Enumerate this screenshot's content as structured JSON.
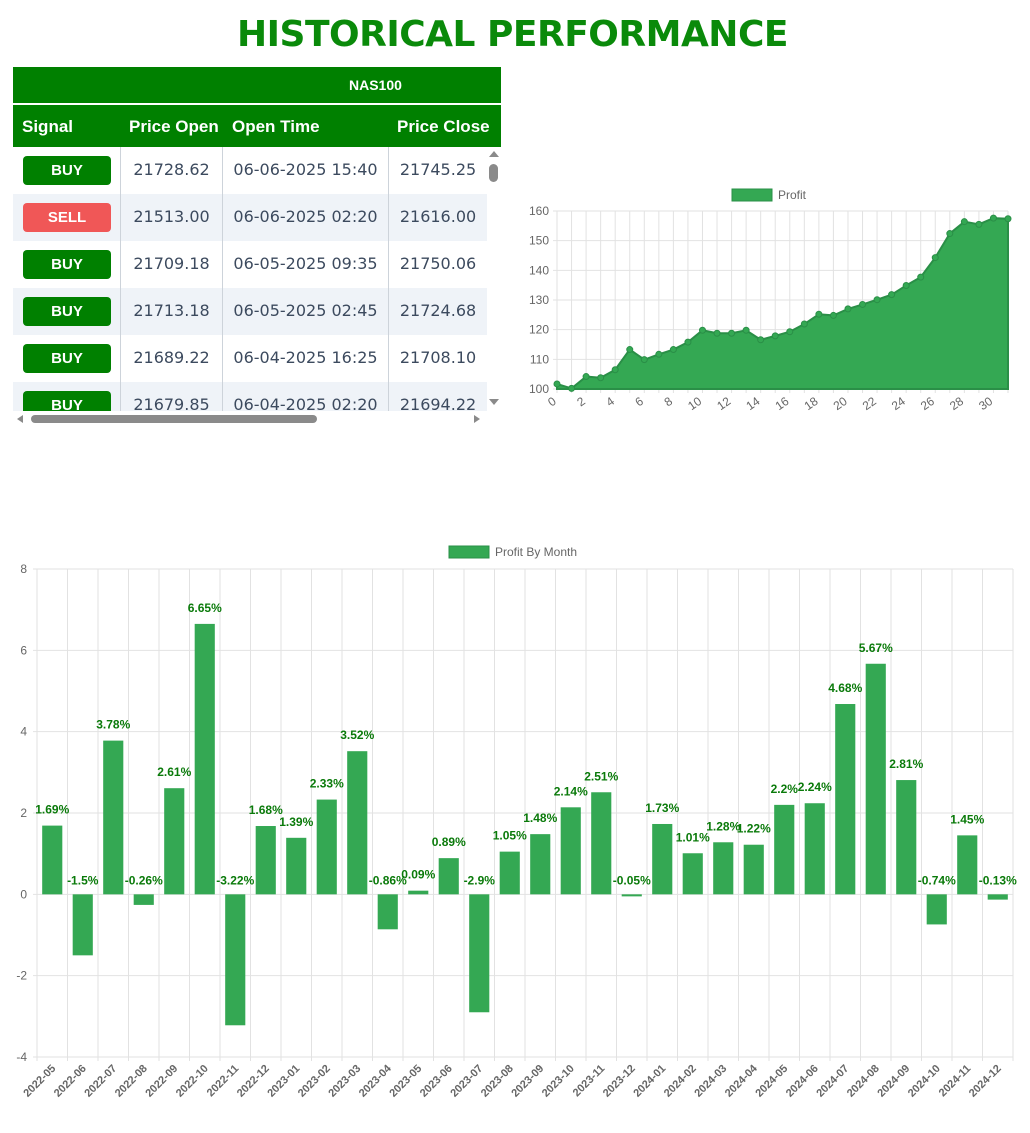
{
  "page": {
    "title": "HISTORICAL PERFORMANCE"
  },
  "table": {
    "symbol": "NAS100",
    "columns": [
      "Signal",
      "Price Open",
      "Open Time",
      "Price Close"
    ],
    "rows": [
      {
        "signal": "BUY",
        "price_open": "21728.62",
        "open_time": "06-06-2025 15:40",
        "price_close": "21745.25"
      },
      {
        "signal": "SELL",
        "price_open": "21513.00",
        "open_time": "06-06-2025 02:20",
        "price_close": "21616.00"
      },
      {
        "signal": "BUY",
        "price_open": "21709.18",
        "open_time": "06-05-2025 09:35",
        "price_close": "21750.06"
      },
      {
        "signal": "BUY",
        "price_open": "21713.18",
        "open_time": "06-05-2025 02:45",
        "price_close": "21724.68"
      },
      {
        "signal": "BUY",
        "price_open": "21689.22",
        "open_time": "06-04-2025 16:25",
        "price_close": "21708.10"
      },
      {
        "signal": "BUY",
        "price_open": "21679.85",
        "open_time": "06-04-2025 02:20",
        "price_close": "21694.22"
      }
    ]
  },
  "colors": {
    "brand_green": "#008000",
    "title_green": "#0a8a0a",
    "chart_green": "#34a853",
    "sell_red": "#f05757",
    "label_green": "#0a7a0a"
  },
  "chart_data": [
    {
      "type": "area",
      "legend": [
        "Profit"
      ],
      "legend_position": "top-center",
      "grid": true,
      "series": [
        {
          "name": "Profit",
          "x": [
            0,
            1,
            2,
            3,
            4,
            5,
            6,
            7,
            8,
            9,
            10,
            11,
            12,
            13,
            14,
            15,
            16,
            17,
            18,
            19,
            20,
            21,
            22,
            23,
            24,
            25,
            26,
            27,
            28,
            29,
            30,
            31
          ],
          "values": [
            101.7,
            100.2,
            104.2,
            103.8,
            106.5,
            113.3,
            109.9,
            111.7,
            113.3,
            115.8,
            119.8,
            118.8,
            118.8,
            119.8,
            116.6,
            117.9,
            119.3,
            121.9,
            125.2,
            124.8,
            127.0,
            128.5,
            130.1,
            131.8,
            134.9,
            137.7,
            144.3,
            152.4,
            156.4,
            155.5,
            157.6,
            157.4
          ]
        }
      ],
      "xticks": [
        0,
        2,
        4,
        6,
        8,
        10,
        12,
        14,
        16,
        18,
        20,
        22,
        24,
        26,
        28,
        30
      ],
      "yticks": [
        100,
        110,
        120,
        130,
        140,
        150,
        160
      ],
      "xlim": [
        0,
        31
      ],
      "ylim": [
        100,
        160
      ]
    },
    {
      "type": "bar",
      "legend": [
        "Profit By Month"
      ],
      "legend_position": "top-center",
      "grid": true,
      "categories": [
        "2022-05",
        "2022-06",
        "2022-07",
        "2022-08",
        "2022-09",
        "2022-10",
        "2022-11",
        "2022-12",
        "2023-01",
        "2023-02",
        "2023-03",
        "2023-04",
        "2023-05",
        "2023-06",
        "2023-07",
        "2023-08",
        "2023-09",
        "2023-10",
        "2023-11",
        "2023-12",
        "2024-01",
        "2024-02",
        "2024-03",
        "2024-04",
        "2024-05",
        "2024-06",
        "2024-07",
        "2024-08",
        "2024-09",
        "2024-10",
        "2024-11",
        "2024-12"
      ],
      "series": [
        {
          "name": "Profit By Month",
          "values": [
            1.69,
            -1.5,
            3.78,
            -0.26,
            2.61,
            6.65,
            -3.22,
            1.68,
            1.39,
            2.33,
            3.52,
            -0.86,
            0.09,
            0.89,
            -2.9,
            1.05,
            1.48,
            2.14,
            2.51,
            -0.05,
            1.73,
            1.01,
            1.28,
            1.22,
            2.2,
            2.24,
            4.68,
            5.67,
            2.81,
            -0.74,
            1.45,
            -0.13
          ],
          "data_labels": [
            "1.69%",
            "-1.5%",
            "3.78%",
            "-0.26%",
            "2.61%",
            "6.65%",
            "-3.22%",
            "1.68%",
            "1.39%",
            "2.33%",
            "3.52%",
            "-0.86%",
            "0.09%",
            "0.89%",
            "-2.9%",
            "1.05%",
            "1.48%",
            "2.14%",
            "2.51%",
            "-0.05%",
            "1.73%",
            "1.01%",
            "1.28%",
            "1.22%",
            "2.2%",
            "2.24%",
            "4.68%",
            "5.67%",
            "2.81%",
            "-0.74%",
            "1.45%",
            "-0.13%"
          ]
        }
      ],
      "yticks": [
        -4,
        -2,
        0,
        2,
        4,
        6,
        8
      ],
      "ylim": [
        -4,
        8
      ]
    }
  ]
}
